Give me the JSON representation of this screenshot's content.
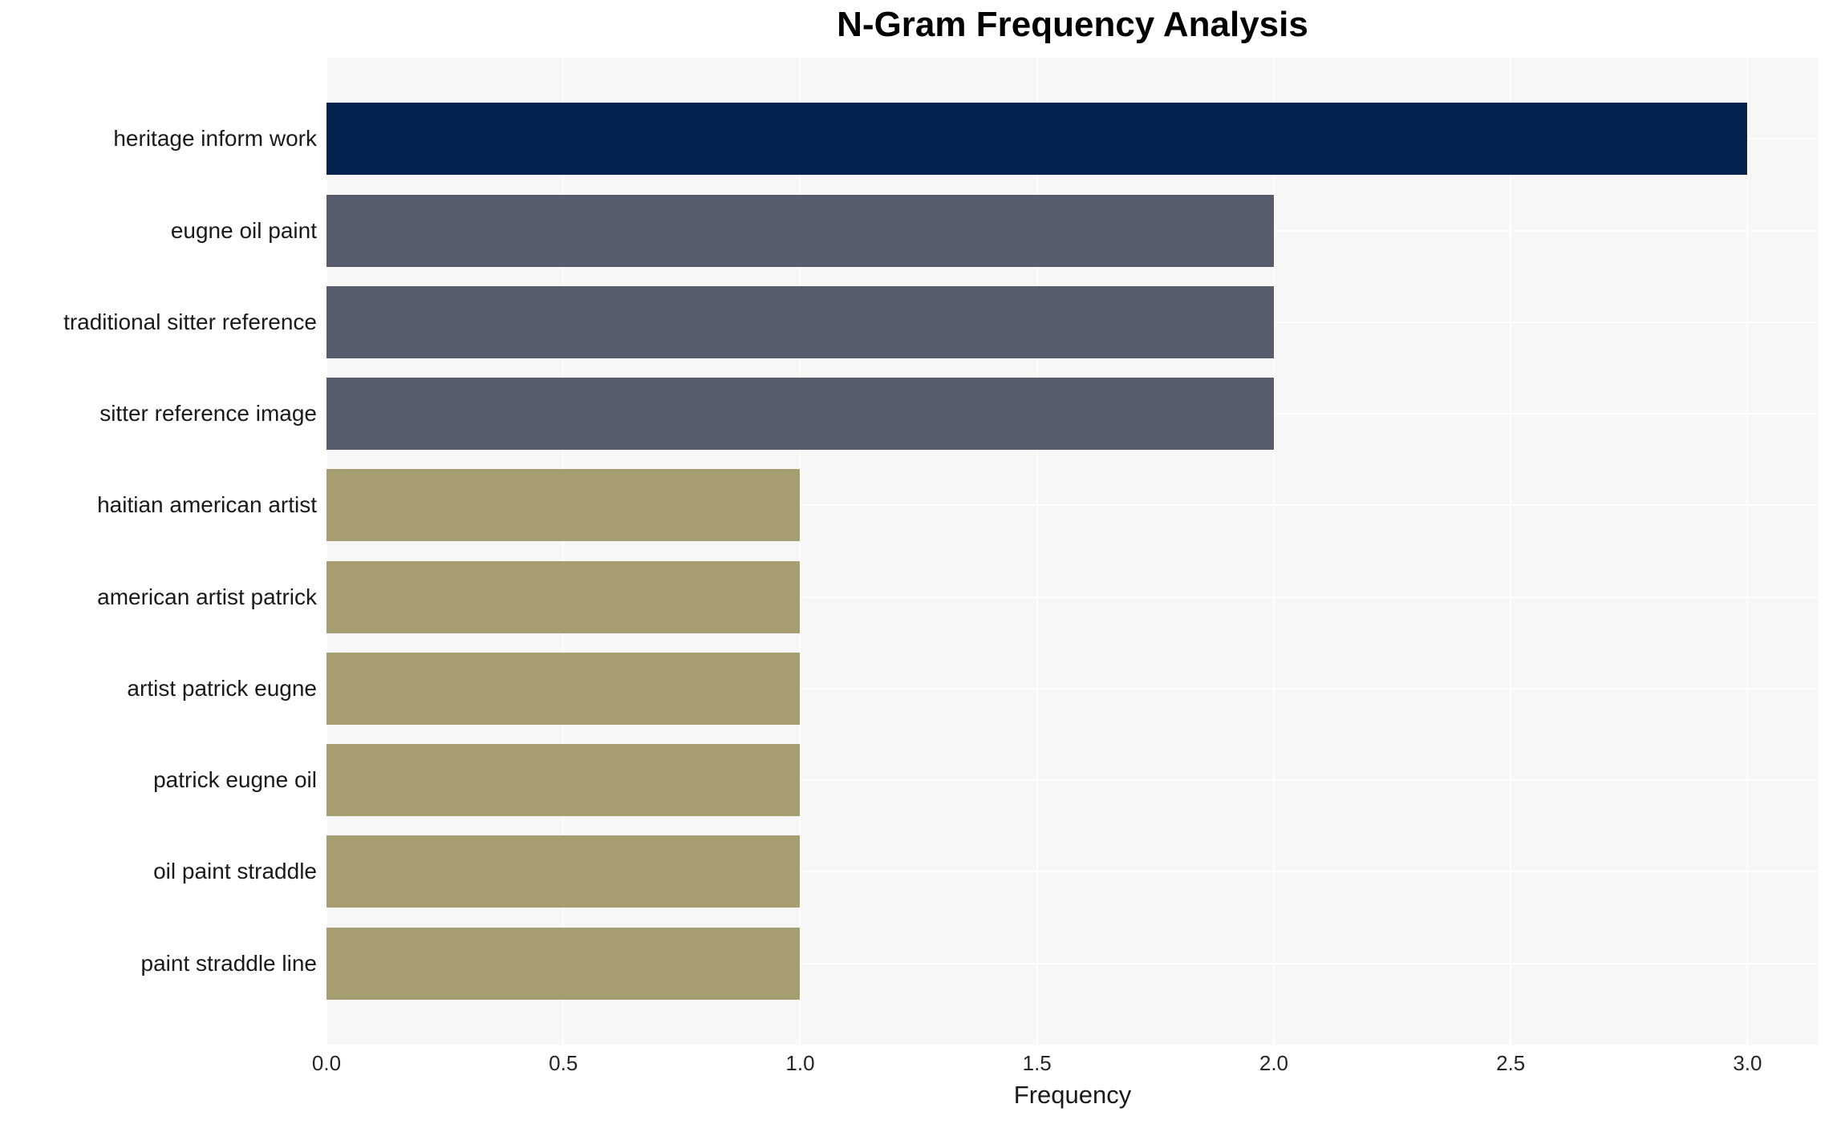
{
  "chart_data": {
    "type": "bar",
    "orientation": "horizontal",
    "title": "N-Gram Frequency Analysis",
    "xlabel": "Frequency",
    "ylabel": "",
    "categories": [
      "heritage inform work",
      "eugne oil paint",
      "traditional sitter reference",
      "sitter reference image",
      "haitian american artist",
      "american artist patrick",
      "artist patrick eugne",
      "patrick eugne oil",
      "oil paint straddle",
      "paint straddle line"
    ],
    "values": [
      3,
      2,
      2,
      2,
      1,
      1,
      1,
      1,
      1,
      1
    ],
    "bar_colors": [
      "#02234E",
      "#575D6C",
      "#575D6C",
      "#575D6C",
      "#A69E71",
      "#A69E71",
      "#A69E71",
      "#A69E71",
      "#A69E71",
      "#A69E71"
    ],
    "xticks": [
      0.0,
      0.5,
      1.0,
      1.5,
      2.0,
      2.5,
      3.0
    ],
    "xtick_labels": [
      "0.0",
      "0.5",
      "1.0",
      "1.5",
      "2.0",
      "2.5",
      "3.0"
    ],
    "xlim": [
      0,
      3.15
    ],
    "grid": "white vertical gridlines at x ticks and horizontal gridlines at category centers, on light gray panel",
    "legend_position": "none",
    "colors": {
      "count_3_bar": "#02234E",
      "count_2_bar": "#575D6C",
      "count_1_bar": "#A69E71",
      "panel_background": "#F7F7F7",
      "gridline": "#FFFFFF",
      "text": "#1A1A1A"
    }
  }
}
